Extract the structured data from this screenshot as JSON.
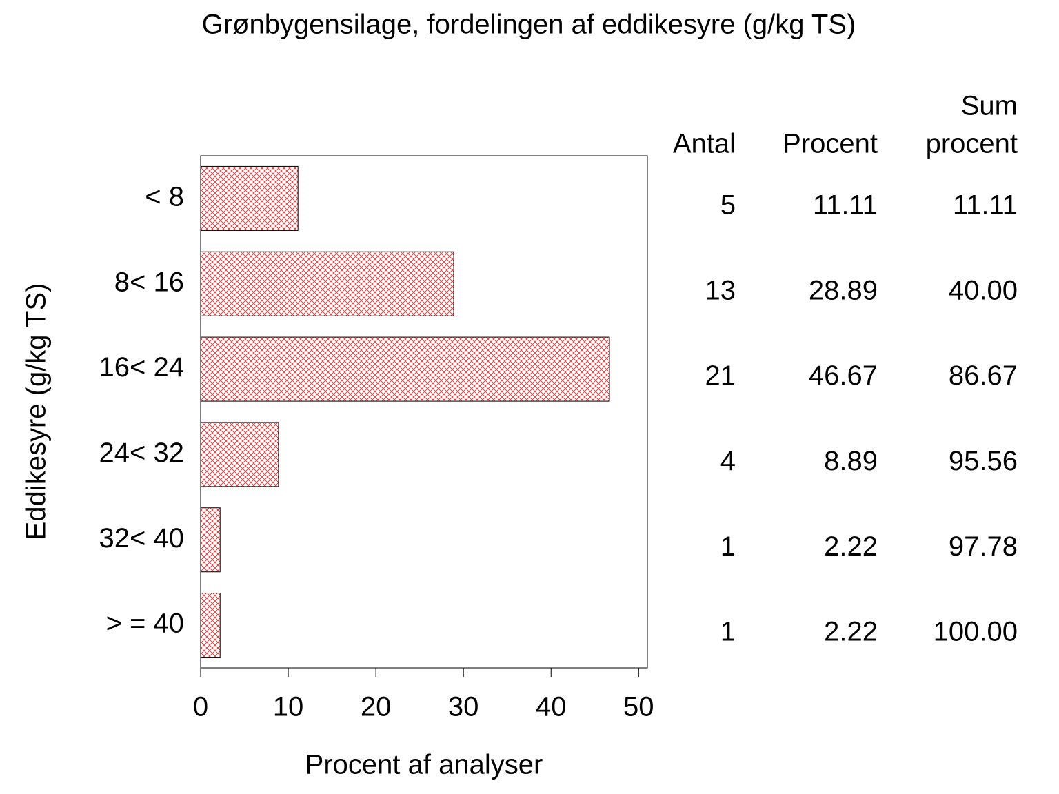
{
  "chart_data": {
    "type": "barh",
    "title": "Grønbygensilage, fordelingen af eddikesyre (g/kg TS)",
    "x_label": "Procent af analyser",
    "y_label": "Eddikesyre (g/kg TS)",
    "categories": [
      "< 8",
      "8< 16",
      "16< 24",
      "24< 32",
      "32< 40",
      "> = 40"
    ],
    "values": [
      11.11,
      28.89,
      46.67,
      8.89,
      2.22,
      2.22
    ],
    "color": "#e03030",
    "xlim": [
      0,
      51
    ],
    "xticks": [
      0,
      10,
      20,
      30,
      40,
      50
    ],
    "table": {
      "columns": [
        [
          "Antal"
        ],
        [
          "Procent"
        ],
        [
          "Sum",
          "procent"
        ]
      ],
      "counts": [
        5,
        13,
        21,
        4,
        1,
        1
      ],
      "cumulative": [
        "11.11",
        "40.00",
        "86.67",
        "95.56",
        "97.78",
        "100.00"
      ]
    }
  }
}
